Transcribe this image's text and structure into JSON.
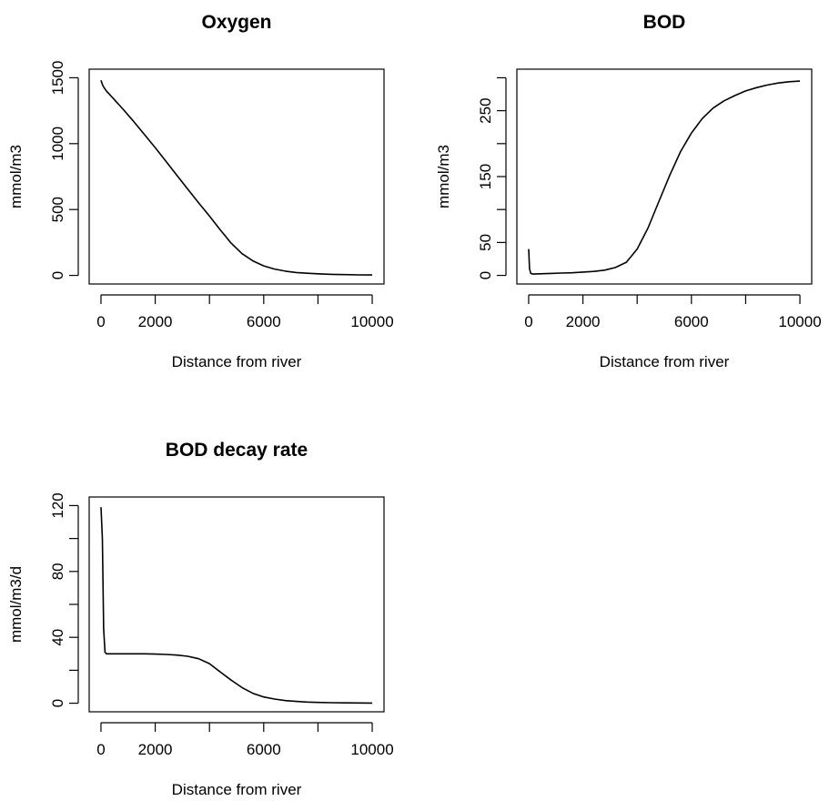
{
  "chart_data": [
    {
      "type": "line",
      "title": "Oxygen",
      "xlabel": "Distance from river",
      "ylabel": "mmol/m3",
      "xlim": [
        0,
        10000
      ],
      "ylim": [
        0,
        1500
      ],
      "xticks": [
        0,
        2000,
        4000,
        6000,
        8000,
        10000
      ],
      "xtick_labels": [
        "0",
        "2000",
        "",
        "6000",
        "",
        "10000"
      ],
      "yticks": [
        0,
        500,
        1000,
        1500
      ],
      "ytick_labels": [
        "0",
        "500",
        "1000",
        "1500"
      ],
      "series": [
        {
          "x": [
            0,
            50,
            100,
            200,
            400,
            800,
            1200,
            1600,
            2000,
            2400,
            2800,
            3200,
            3600,
            4000,
            4400,
            4800,
            5200,
            5600,
            6000,
            6400,
            6800,
            7200,
            7600,
            8000,
            8500,
            9000,
            9500,
            10000
          ],
          "y": [
            1480,
            1450,
            1430,
            1400,
            1355,
            1265,
            1170,
            1070,
            970,
            865,
            760,
            655,
            550,
            450,
            345,
            245,
            165,
            110,
            72,
            48,
            32,
            22,
            16,
            12,
            8,
            6,
            4,
            3
          ]
        }
      ]
    },
    {
      "type": "line",
      "title": "BOD",
      "xlabel": "Distance from river",
      "ylabel": "mmol/m3",
      "xlim": [
        0,
        10000
      ],
      "ylim": [
        0,
        300
      ],
      "xticks": [
        0,
        2000,
        4000,
        6000,
        8000,
        10000
      ],
      "xtick_labels": [
        "0",
        "2000",
        "",
        "6000",
        "",
        "10000"
      ],
      "yticks": [
        0,
        50,
        100,
        150,
        200,
        250,
        300
      ],
      "ytick_labels": [
        "0",
        "50",
        "",
        "150",
        "",
        "250",
        ""
      ],
      "series": [
        {
          "x": [
            0,
            30,
            80,
            150,
            400,
            800,
            1200,
            1600,
            2000,
            2400,
            2800,
            3200,
            3600,
            4000,
            4400,
            4800,
            5200,
            5600,
            6000,
            6400,
            6800,
            7200,
            7600,
            8000,
            8400,
            8800,
            9200,
            9600,
            10000
          ],
          "y": [
            40,
            10,
            3,
            2,
            2.5,
            3,
            3.5,
            4,
            5,
            6,
            8,
            12,
            20,
            40,
            72,
            112,
            152,
            188,
            216,
            238,
            254,
            265,
            273,
            280,
            285,
            289,
            292,
            294,
            295
          ]
        }
      ]
    },
    {
      "type": "line",
      "title": "BOD decay rate",
      "xlabel": "Distance from river",
      "ylabel": "mmol/m3/d",
      "xlim": [
        0,
        10000
      ],
      "ylim": [
        0,
        120
      ],
      "xticks": [
        0,
        2000,
        4000,
        6000,
        8000,
        10000
      ],
      "xtick_labels": [
        "0",
        "2000",
        "",
        "6000",
        "",
        "10000"
      ],
      "yticks": [
        0,
        20,
        40,
        60,
        80,
        100,
        120
      ],
      "ytick_labels": [
        "0",
        "",
        "40",
        "",
        "80",
        "",
        "120"
      ],
      "series": [
        {
          "x": [
            0,
            50,
            100,
            150,
            200,
            400,
            800,
            1200,
            1600,
            2000,
            2400,
            2800,
            3200,
            3600,
            4000,
            4400,
            4800,
            5200,
            5600,
            6000,
            6400,
            6800,
            7200,
            7600,
            8000,
            8500,
            9000,
            9500,
            10000
          ],
          "y": [
            119,
            100,
            45,
            31,
            30,
            30,
            30,
            30,
            30,
            29.8,
            29.6,
            29.2,
            28.5,
            27,
            24,
            19,
            14,
            9.5,
            6,
            3.8,
            2.5,
            1.6,
            1.1,
            0.7,
            0.5,
            0.3,
            0.2,
            0.15,
            0.1
          ]
        }
      ]
    }
  ]
}
